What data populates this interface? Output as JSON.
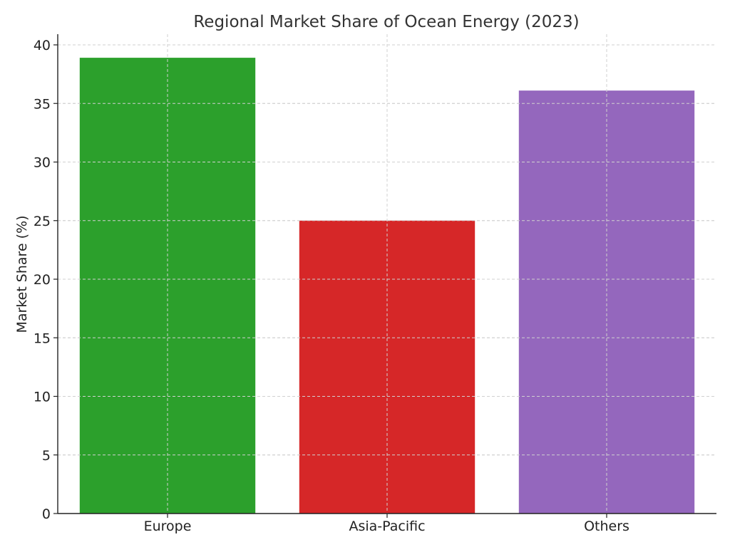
{
  "chart_data": {
    "type": "bar",
    "title": "Regional Market Share of Ocean Energy (2023)",
    "xlabel": "",
    "ylabel": "Market Share (%)",
    "categories": [
      "Europe",
      "Asia-Pacific",
      "Others"
    ],
    "values": [
      38.9,
      25.0,
      36.1
    ],
    "colors": [
      "#2ca02c",
      "#d62728",
      "#9467bd"
    ],
    "ylim": [
      0,
      40
    ],
    "yticks": [
      0,
      5,
      10,
      15,
      20,
      25,
      30,
      35,
      40
    ],
    "grid": true,
    "legend": "none"
  }
}
